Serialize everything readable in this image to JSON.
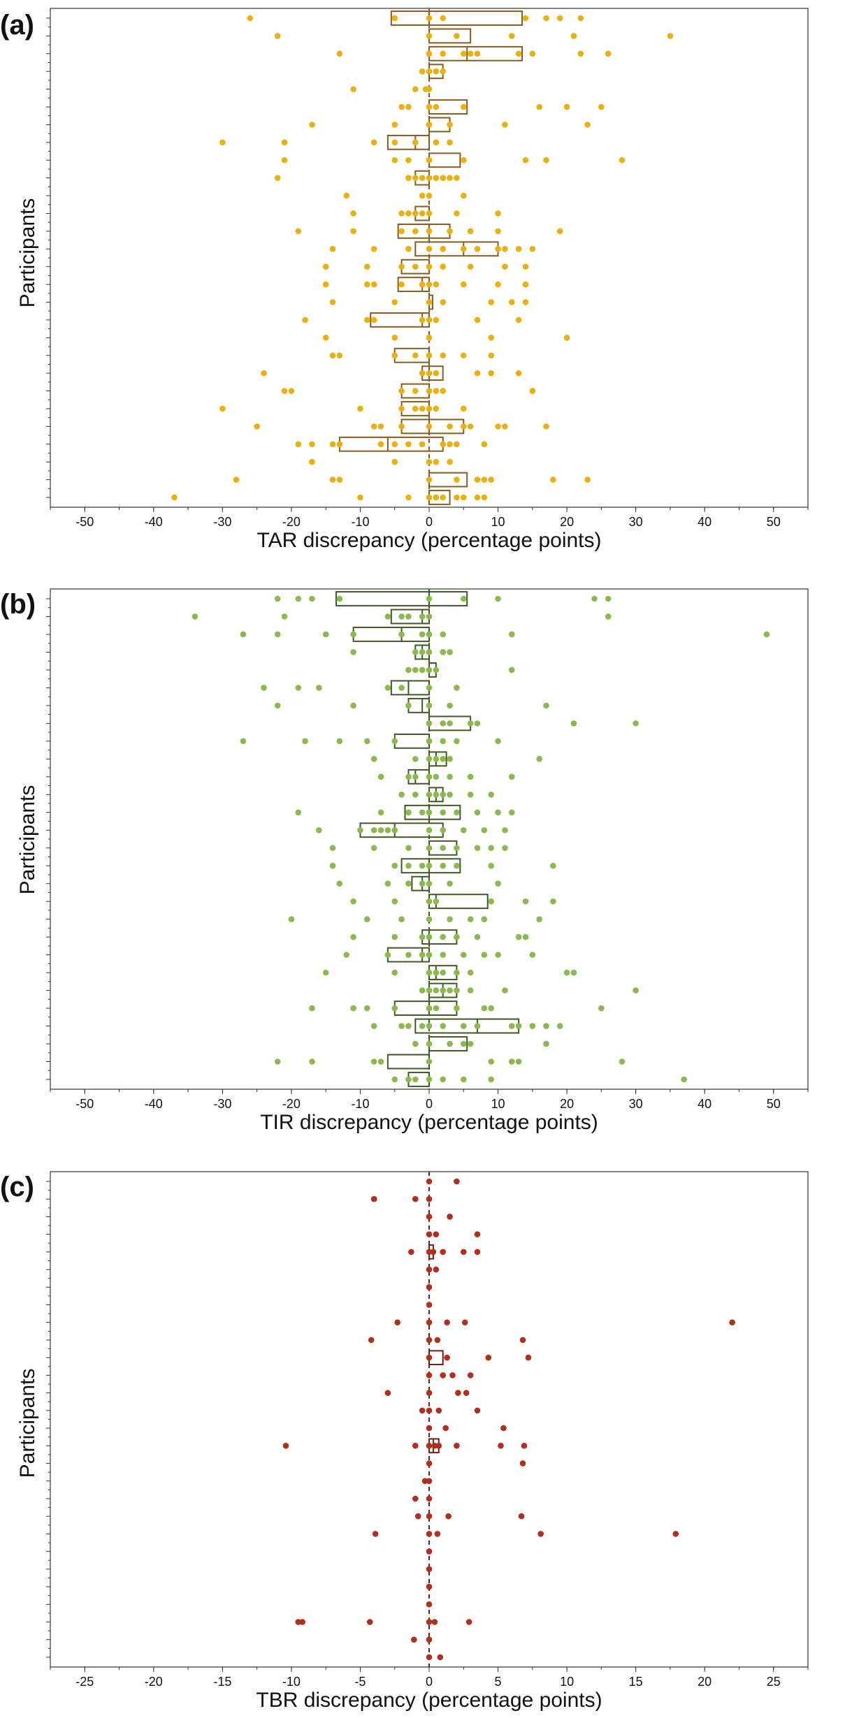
{
  "panels": [
    {
      "label": "(a)",
      "ylabel": "Participants",
      "xlabel": "TAR discrepancy (percentage points)"
    },
    {
      "label": "(b)",
      "ylabel": "Participants",
      "xlabel": "TIR discrepancy (percentage points)"
    },
    {
      "label": "(c)",
      "ylabel": "Participants",
      "xlabel": "TBR discrepancy (percentage points)"
    }
  ],
  "chart_data": [
    {
      "type": "scatter",
      "title": "",
      "xlabel": "TAR discrepancy (percentage points)",
      "ylabel": "Participants",
      "xlim": [
        -55,
        55
      ],
      "xticks": [
        -50,
        -40,
        -30,
        -20,
        -10,
        0,
        10,
        20,
        30,
        40,
        50
      ],
      "color_points": "#e8b012",
      "color_boxes": "#8a5a1e",
      "n_participants": 28,
      "participants": [
        {
          "points": [
            -26,
            -5,
            0,
            2,
            14,
            17,
            19,
            22
          ],
          "q1": -5.5,
          "med": 0,
          "q3": 13.5
        },
        {
          "points": [
            -22,
            0,
            4,
            12,
            21,
            35
          ],
          "q1": 0,
          "med": 0,
          "q3": 6
        },
        {
          "points": [
            -13,
            0,
            2,
            5,
            6,
            7,
            13,
            15,
            22,
            26
          ],
          "q1": 0,
          "med": 5.5,
          "q3": 13.5
        },
        {
          "points": [
            -1,
            0,
            1,
            2
          ],
          "q1": 0,
          "med": 0,
          "q3": 2
        },
        {
          "points": [
            -11,
            -2,
            -0.5,
            0
          ],
          "q1": 0,
          "med": 0,
          "q3": 0
        },
        {
          "points": [
            -4,
            -3,
            0,
            1,
            5,
            16,
            20,
            25
          ],
          "q1": 0,
          "med": 0,
          "q3": 5.5
        },
        {
          "points": [
            -17,
            -5,
            0,
            3,
            11,
            23
          ],
          "q1": 0,
          "med": 0,
          "q3": 3
        },
        {
          "points": [
            -30,
            -21,
            -8,
            -5,
            -2,
            1,
            3
          ],
          "q1": -6,
          "med": -2,
          "q3": 0
        },
        {
          "points": [
            -21,
            -5,
            -3,
            0,
            0,
            5,
            14,
            17,
            28
          ],
          "q1": 0,
          "med": 0,
          "q3": 4.5
        },
        {
          "points": [
            -22,
            -3,
            -2,
            -1,
            0,
            1,
            2,
            3,
            4
          ],
          "q1": -2,
          "med": 0,
          "q3": 0
        },
        {
          "points": [
            -12,
            -1,
            0,
            5
          ],
          "q1": 0,
          "med": 0,
          "q3": 0
        },
        {
          "points": [
            -11,
            -4,
            -3,
            -2,
            -1,
            0,
            4,
            10
          ],
          "q1": -2,
          "med": 0,
          "q3": 0
        },
        {
          "points": [
            -19,
            -11,
            -4,
            -2,
            0,
            3,
            6,
            10,
            19
          ],
          "q1": -4.5,
          "med": 0,
          "q3": 3
        },
        {
          "points": [
            -14,
            -8,
            -3,
            0,
            2,
            5,
            7,
            10,
            11,
            13,
            15
          ],
          "q1": -2,
          "med": 5,
          "q3": 10
        },
        {
          "points": [
            -15,
            -9,
            -4,
            -2,
            0,
            2,
            6,
            11,
            14
          ],
          "q1": -4,
          "med": 0,
          "q3": 0
        },
        {
          "points": [
            -15,
            -9,
            -8,
            -4,
            -1,
            0,
            1,
            5,
            10,
            14
          ],
          "q1": -4.5,
          "med": -1,
          "q3": 0
        },
        {
          "points": [
            -14,
            -5,
            0,
            2,
            9,
            12,
            14
          ],
          "q1": 0,
          "med": 0,
          "q3": 0.5
        },
        {
          "points": [
            -18,
            -9,
            -8,
            -1,
            0,
            1,
            7,
            13
          ],
          "q1": -8.5,
          "med": -1,
          "q3": 0
        },
        {
          "points": [
            -15,
            -5,
            0,
            9,
            20
          ],
          "q1": 0,
          "med": 0,
          "q3": 0
        },
        {
          "points": [
            -14,
            -13,
            -5,
            -2,
            0,
            2,
            5,
            9
          ],
          "q1": -5,
          "med": 0,
          "q3": 0
        },
        {
          "points": [
            -24,
            -1,
            0,
            1,
            7,
            9,
            13
          ],
          "q1": -1,
          "med": 0,
          "q3": 2
        },
        {
          "points": [
            -21,
            -20,
            -4,
            -2,
            0,
            1,
            2,
            15
          ],
          "q1": -4,
          "med": 0,
          "q3": 0
        },
        {
          "points": [
            -30,
            -10,
            -4,
            -2,
            -1,
            0,
            1,
            5
          ],
          "q1": -4,
          "med": 0,
          "q3": 0
        },
        {
          "points": [
            -25,
            -8,
            -7,
            -4,
            0,
            3,
            5,
            6,
            10,
            11,
            17
          ],
          "q1": -4,
          "med": 0,
          "q3": 5
        },
        {
          "points": [
            -19,
            -17,
            -14,
            -13,
            -7,
            -5,
            -3,
            -1,
            2,
            3,
            4,
            8
          ],
          "q1": -13,
          "med": -6,
          "q3": 2
        },
        {
          "points": [
            -17,
            -5,
            0,
            1,
            3
          ],
          "q1": 0,
          "med": 0,
          "q3": 0
        },
        {
          "points": [
            -28,
            -14,
            -13,
            0,
            4,
            7,
            8,
            9,
            18,
            23
          ],
          "q1": 0,
          "med": 0,
          "q3": 5.5
        },
        {
          "points": [
            -37,
            -10,
            -3,
            0,
            1,
            2,
            4,
            5,
            7,
            8
          ],
          "q1": 0,
          "med": 0,
          "q3": 3
        }
      ]
    },
    {
      "type": "scatter",
      "title": "",
      "xlabel": "TIR discrepancy (percentage points)",
      "ylabel": "Participants",
      "xlim": [
        -55,
        55
      ],
      "xticks": [
        -50,
        -40,
        -30,
        -20,
        -10,
        0,
        10,
        20,
        30,
        40,
        50
      ],
      "color_points": "#8cb850",
      "color_boxes": "#3e5a22",
      "n_participants": 28,
      "participants": [
        {
          "points": [
            -22,
            -19,
            -17,
            -13,
            0,
            5,
            10,
            24,
            26
          ],
          "q1": -13.5,
          "med": 0,
          "q3": 5.5
        },
        {
          "points": [
            -34,
            -21,
            -6,
            -4,
            -3,
            -1,
            0,
            26
          ],
          "q1": -5.5,
          "med": -1,
          "q3": 0
        },
        {
          "points": [
            -27,
            -22,
            -15,
            -11,
            -4,
            -1,
            0,
            2,
            12,
            49
          ],
          "q1": -11,
          "med": -4,
          "q3": 0
        },
        {
          "points": [
            -11,
            -2,
            -1,
            0,
            2,
            3
          ],
          "q1": -2,
          "med": -1,
          "q3": 0
        },
        {
          "points": [
            -3,
            -2,
            -1,
            0,
            1,
            12
          ],
          "q1": 0,
          "med": 0,
          "q3": 1
        },
        {
          "points": [
            -24,
            -19,
            -16,
            -6,
            -4,
            0,
            4
          ],
          "q1": -5.5,
          "med": -3,
          "q3": 0
        },
        {
          "points": [
            -22,
            -11,
            -3,
            0,
            3,
            17
          ],
          "q1": -3,
          "med": -1,
          "q3": 0
        },
        {
          "points": [
            0,
            2,
            3,
            6,
            7,
            21,
            30
          ],
          "q1": 0,
          "med": 0,
          "q3": 6
        },
        {
          "points": [
            -27,
            -18,
            -13,
            -9,
            -5,
            0,
            2,
            4,
            10
          ],
          "q1": -5,
          "med": 0,
          "q3": 0
        },
        {
          "points": [
            -8,
            -2,
            0,
            1,
            2,
            3,
            16
          ],
          "q1": 0,
          "med": 1,
          "q3": 2.5
        },
        {
          "points": [
            -7,
            -3,
            -2,
            0,
            1,
            3,
            6,
            12
          ],
          "q1": -3,
          "med": -2,
          "q3": 0
        },
        {
          "points": [
            -4,
            -2,
            0,
            1,
            2,
            3,
            6,
            9
          ],
          "q1": 0,
          "med": 1,
          "q3": 2
        },
        {
          "points": [
            -19,
            -7,
            -3,
            -1,
            0,
            2,
            4,
            7,
            10,
            12
          ],
          "q1": -3.5,
          "med": 0,
          "q3": 4.5
        },
        {
          "points": [
            -16,
            -10,
            -8,
            -7,
            -6,
            -5,
            0,
            2,
            5,
            8,
            11
          ],
          "q1": -10,
          "med": -5,
          "q3": 2
        },
        {
          "points": [
            -14,
            -8,
            -3,
            0,
            2,
            4,
            7,
            9,
            11
          ],
          "q1": 0,
          "med": 0,
          "q3": 4
        },
        {
          "points": [
            -14,
            -5,
            -3,
            -1,
            0,
            2,
            4,
            9,
            18
          ],
          "q1": -4,
          "med": 0,
          "q3": 4.5
        },
        {
          "points": [
            -13,
            -6,
            -3,
            -1,
            0,
            3,
            10
          ],
          "q1": -2.5,
          "med": -1,
          "q3": 0
        },
        {
          "points": [
            -11,
            -5,
            0,
            1,
            9,
            14,
            18
          ],
          "q1": 0,
          "med": 1,
          "q3": 8.5
        },
        {
          "points": [
            -20,
            -9,
            -4,
            0,
            3,
            6,
            8,
            16
          ],
          "q1": 0,
          "med": 0,
          "q3": 0
        },
        {
          "points": [
            -11,
            -5,
            -1,
            0,
            2,
            4,
            7,
            13,
            14
          ],
          "q1": -1,
          "med": 0,
          "q3": 4
        },
        {
          "points": [
            -12,
            -6,
            -3,
            -1,
            0,
            2,
            5,
            8,
            10,
            15
          ],
          "q1": -6,
          "med": -1,
          "q3": 0
        },
        {
          "points": [
            -15,
            -5,
            0,
            1,
            2,
            4,
            6,
            20,
            21
          ],
          "q1": 0,
          "med": 1,
          "q3": 4
        },
        {
          "points": [
            -1,
            0,
            1,
            2,
            3,
            4,
            6,
            11,
            30
          ],
          "q1": 0,
          "med": 2,
          "q3": 4
        },
        {
          "points": [
            -17,
            -11,
            -9,
            -5,
            0,
            1,
            4,
            8,
            9,
            25
          ],
          "q1": -5,
          "med": 0,
          "q3": 4
        },
        {
          "points": [
            -8,
            -4,
            -3,
            -1,
            0,
            2,
            5,
            7,
            12,
            13,
            15,
            17,
            19
          ],
          "q1": -2,
          "med": 7,
          "q3": 13
        },
        {
          "points": [
            -2,
            0,
            3,
            5,
            6,
            17
          ],
          "q1": 0,
          "med": 0,
          "q3": 5.5
        },
        {
          "points": [
            -22,
            -17,
            -8,
            -7,
            0,
            9,
            12,
            13,
            28
          ],
          "q1": -6,
          "med": 0,
          "q3": 0
        },
        {
          "points": [
            -5,
            -3,
            -2,
            0,
            2,
            5,
            9,
            37
          ],
          "q1": -3,
          "med": 0,
          "q3": 0
        }
      ]
    },
    {
      "type": "scatter",
      "title": "",
      "xlabel": "TBR discrepancy (percentage points)",
      "ylabel": "Participants",
      "xlim": [
        -27.5,
        27.5
      ],
      "xticks": [
        -25,
        -20,
        -15,
        -10,
        -5,
        0,
        5,
        10,
        15,
        20,
        25
      ],
      "color_points": "#b03020",
      "color_boxes": "#6e1e16",
      "n_participants": 28,
      "participants": [
        {
          "points": [
            0,
            2
          ],
          "q1": 0,
          "med": 0,
          "q3": 0
        },
        {
          "points": [
            -4,
            -1,
            0
          ],
          "q1": 0,
          "med": 0,
          "q3": 0
        },
        {
          "points": [
            0,
            1.5
          ],
          "q1": 0,
          "med": 0,
          "q3": 0
        },
        {
          "points": [
            0,
            0.5,
            3.5
          ],
          "q1": 0,
          "med": 0,
          "q3": 0
        },
        {
          "points": [
            -1.3,
            0,
            0.3,
            1,
            2.5,
            3.5
          ],
          "q1": 0,
          "med": 0,
          "q3": 0.3
        },
        {
          "points": [
            0,
            0.5
          ],
          "q1": 0,
          "med": 0,
          "q3": 0
        },
        {
          "points": [
            0
          ],
          "q1": 0,
          "med": 0,
          "q3": 0
        },
        {
          "points": [
            0
          ],
          "q1": 0,
          "med": 0,
          "q3": 0
        },
        {
          "points": [
            -2.3,
            0,
            1.3,
            2.6,
            22
          ],
          "q1": 0,
          "med": 0,
          "q3": 0
        },
        {
          "points": [
            -4.2,
            0,
            0.6,
            6.8
          ],
          "q1": 0,
          "med": 0,
          "q3": 0
        },
        {
          "points": [
            0,
            1.3,
            4.3,
            7.2
          ],
          "q1": 0,
          "med": 0,
          "q3": 1
        },
        {
          "points": [
            0,
            1,
            1.7,
            3
          ],
          "q1": 0,
          "med": 0,
          "q3": 0
        },
        {
          "points": [
            -3,
            0,
            2.1,
            2.7
          ],
          "q1": 0,
          "med": 0,
          "q3": 0
        },
        {
          "points": [
            -0.5,
            0,
            0.7,
            3.5
          ],
          "q1": 0,
          "med": 0,
          "q3": 0
        },
        {
          "points": [
            0,
            1.2,
            5.4
          ],
          "q1": 0,
          "med": 0,
          "q3": 0
        },
        {
          "points": [
            -10.4,
            -1,
            0,
            0.4,
            0.7,
            2,
            5.2,
            6.9
          ],
          "q1": 0,
          "med": 0.3,
          "q3": 0.7
        },
        {
          "points": [
            0,
            6.8
          ],
          "q1": 0,
          "med": 0,
          "q3": 0
        },
        {
          "points": [
            -0.3,
            0
          ],
          "q1": 0,
          "med": 0,
          "q3": 0
        },
        {
          "points": [
            -1,
            0
          ],
          "q1": 0,
          "med": 0,
          "q3": 0
        },
        {
          "points": [
            -0.8,
            0,
            1.4,
            6.7
          ],
          "q1": 0,
          "med": 0,
          "q3": 0
        },
        {
          "points": [
            -3.9,
            0,
            0.6,
            8.1,
            17.9
          ],
          "q1": 0,
          "med": 0,
          "q3": 0
        },
        {
          "points": [
            0
          ],
          "q1": 0,
          "med": 0,
          "q3": 0
        },
        {
          "points": [
            0
          ],
          "q1": 0,
          "med": 0,
          "q3": 0
        },
        {
          "points": [
            0
          ],
          "q1": 0,
          "med": 0,
          "q3": 0
        },
        {
          "points": [
            0
          ],
          "q1": 0,
          "med": 0,
          "q3": 0
        },
        {
          "points": [
            -9.5,
            -9.2,
            -4.3,
            0,
            0.4,
            2.9
          ],
          "q1": 0,
          "med": 0,
          "q3": 0
        },
        {
          "points": [
            -1.1,
            0
          ],
          "q1": 0,
          "med": 0,
          "q3": 0
        },
        {
          "points": [
            0,
            0.8
          ],
          "q1": 0,
          "med": 0,
          "q3": 0
        }
      ]
    }
  ]
}
